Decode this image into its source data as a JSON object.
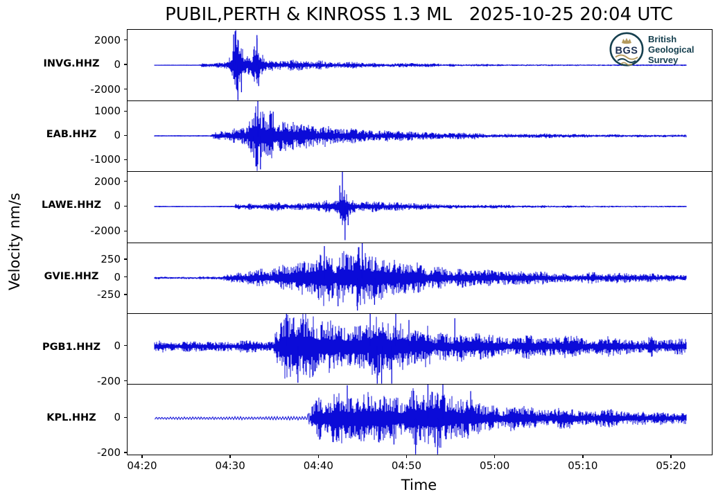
{
  "colors": {
    "trace": "#0b0bd8",
    "frame": "#000000",
    "logo_teal": "#16404f",
    "logo_navy": "#1b2f52",
    "logo_gold": "#b49а5e"
  },
  "logo": {
    "abbr": "BGS",
    "lines": [
      "British",
      "Geological",
      "Survey"
    ]
  },
  "chart_data": {
    "type": "line",
    "title": "PUBIL,PERTH & KINROSS 1.3 ML   2025-10-25 20:04 UTC",
    "event": {
      "location": "PUBIL,PERTH & KINROSS",
      "magnitude": "1.3 ML",
      "origin_time": "2025-10-25 20:04 UTC"
    },
    "x_axis": {
      "label": "Time",
      "ticks": [
        "04:20",
        "04:30",
        "04:40",
        "04:50",
        "05:00",
        "05:10",
        "05:20"
      ],
      "tick_interval_min": 10
    },
    "y_axis": {
      "label": "Velocity nm/s"
    },
    "legend": "none",
    "grid": false,
    "stations": [
      {
        "name": "INVG.HHZ",
        "yticks": [
          {
            "v": 2000,
            "label": "2000"
          },
          {
            "v": 0,
            "label": "0"
          },
          {
            "v": -2000,
            "label": "-2000"
          }
        ],
        "ylim": [
          -2880,
          2880
        ],
        "envelope": [
          [
            1.3,
            14
          ],
          [
            6.3,
            16
          ],
          [
            6.6,
            170
          ],
          [
            7.5,
            230
          ],
          [
            8.5,
            260
          ],
          [
            9.5,
            320
          ],
          [
            10.1,
            900
          ],
          [
            10.5,
            2500
          ],
          [
            11.0,
            1800
          ],
          [
            11.6,
            800
          ],
          [
            12.4,
            700
          ],
          [
            12.9,
            2200
          ],
          [
            13.3,
            900
          ],
          [
            14,
            600
          ],
          [
            15,
            520
          ],
          [
            16.5,
            440
          ],
          [
            18,
            380
          ],
          [
            20,
            320
          ],
          [
            22,
            270
          ],
          [
            24,
            230
          ],
          [
            26,
            195
          ],
          [
            28,
            165
          ],
          [
            30,
            145
          ],
          [
            33,
            120
          ],
          [
            36,
            100
          ],
          [
            40,
            82
          ],
          [
            44,
            68
          ],
          [
            48,
            58
          ],
          [
            52,
            50
          ],
          [
            56,
            44
          ],
          [
            62,
            38
          ]
        ],
        "spikes": [
          [
            10.55,
            3100
          ],
          [
            10.8,
            -3100
          ],
          [
            10.3,
            2500
          ],
          [
            11.2,
            -2200
          ],
          [
            12.95,
            2450
          ],
          [
            13.15,
            -1700
          ]
        ]
      },
      {
        "name": "EAB.HHZ",
        "yticks": [
          {
            "v": 1000,
            "label": "1000"
          },
          {
            "v": 0,
            "label": "0"
          },
          {
            "v": -1000,
            "label": "-1000"
          }
        ],
        "ylim": [
          -1460,
          1460
        ],
        "envelope": [
          [
            1.3,
            11
          ],
          [
            7.6,
            13
          ],
          [
            7.9,
            120
          ],
          [
            8.8,
            150
          ],
          [
            9.8,
            190
          ],
          [
            10.8,
            280
          ],
          [
            11.8,
            450
          ],
          [
            12.5,
            700
          ],
          [
            13.0,
            1350
          ],
          [
            13.4,
            1000
          ],
          [
            13.9,
            750
          ],
          [
            14.6,
            950
          ],
          [
            15.2,
            650
          ],
          [
            16,
            540
          ],
          [
            17.5,
            470
          ],
          [
            19,
            410
          ],
          [
            21,
            350
          ],
          [
            23,
            300
          ],
          [
            25,
            260
          ],
          [
            27,
            225
          ],
          [
            29,
            195
          ],
          [
            31,
            170
          ],
          [
            34,
            145
          ],
          [
            37,
            125
          ],
          [
            40,
            105
          ],
          [
            44,
            88
          ],
          [
            48,
            75
          ],
          [
            52,
            65
          ],
          [
            56,
            56
          ],
          [
            62,
            48
          ]
        ],
        "spikes": [
          [
            13.05,
            1480
          ],
          [
            13.35,
            -1380
          ],
          [
            14.8,
            1000
          ],
          [
            12.6,
            -900
          ]
        ]
      },
      {
        "name": "LAWE.HHZ",
        "yticks": [
          {
            "v": 2000,
            "label": "2000"
          },
          {
            "v": 0,
            "label": "0"
          },
          {
            "v": -2000,
            "label": "-2000"
          }
        ],
        "ylim": [
          -2850,
          2850
        ],
        "envelope": [
          [
            1.3,
            22
          ],
          [
            10.3,
            26
          ],
          [
            10.6,
            280
          ],
          [
            11.1,
            160
          ],
          [
            12.2,
            360
          ],
          [
            12.8,
            180
          ],
          [
            13.5,
            220
          ],
          [
            14.5,
            300
          ],
          [
            15.5,
            330
          ],
          [
            16.5,
            280
          ],
          [
            17.5,
            380
          ],
          [
            18.5,
            340
          ],
          [
            19.5,
            400
          ],
          [
            20.5,
            420
          ],
          [
            21.3,
            520
          ],
          [
            22.0,
            900
          ],
          [
            22.6,
            2600
          ],
          [
            23.1,
            1600
          ],
          [
            23.7,
            750
          ],
          [
            24.5,
            480
          ],
          [
            25.5,
            400
          ],
          [
            27,
            330
          ],
          [
            29,
            270
          ],
          [
            31,
            225
          ],
          [
            33,
            190
          ],
          [
            36,
            155
          ],
          [
            39,
            130
          ],
          [
            42,
            110
          ],
          [
            46,
            92
          ],
          [
            50,
            80
          ],
          [
            54,
            70
          ],
          [
            62,
            58
          ]
        ],
        "spikes": [
          [
            22.65,
            2950
          ],
          [
            22.95,
            -2700
          ],
          [
            22.35,
            1700
          ],
          [
            23.3,
            -1500
          ]
        ]
      },
      {
        "name": "GVIE.HHZ",
        "yticks": [
          {
            "v": 250,
            "label": "250"
          },
          {
            "v": 0,
            "label": "0"
          },
          {
            "v": -250,
            "label": "-250"
          }
        ],
        "ylim": [
          -500,
          500
        ],
        "envelope": [
          [
            1.3,
            17
          ],
          [
            8.8,
            20
          ],
          [
            9.6,
            45
          ],
          [
            11,
            70
          ],
          [
            12.5,
            95
          ],
          [
            14,
            120
          ],
          [
            15.5,
            150
          ],
          [
            17,
            195
          ],
          [
            18.5,
            240
          ],
          [
            19.5,
            280
          ],
          [
            20.4,
            330
          ],
          [
            21.2,
            290
          ],
          [
            22.2,
            330
          ],
          [
            23.2,
            360
          ],
          [
            24.2,
            430
          ],
          [
            25.0,
            370
          ],
          [
            26,
            330
          ],
          [
            27,
            290
          ],
          [
            28,
            255
          ],
          [
            29.5,
            215
          ],
          [
            31,
            185
          ],
          [
            33,
            155
          ],
          [
            35,
            130
          ],
          [
            37,
            112
          ],
          [
            39,
            100
          ],
          [
            41,
            92
          ],
          [
            43,
            85
          ],
          [
            46,
            78
          ],
          [
            49,
            72
          ],
          [
            52,
            67
          ],
          [
            56,
            62
          ],
          [
            62,
            56
          ]
        ],
        "spikes": [
          [
            20.6,
            450
          ],
          [
            24.9,
            495
          ],
          [
            24.35,
            -460
          ],
          [
            22.15,
            -400
          ],
          [
            26.3,
            -380
          ]
        ]
      },
      {
        "name": "PGB1.HHZ",
        "yticks": [
          {
            "v": 0,
            "label": "0"
          },
          {
            "v": -200,
            "label": "-200"
          }
        ],
        "ylim": [
          -212,
          188
        ],
        "envelope": [
          [
            1.3,
            30
          ],
          [
            3,
            34
          ],
          [
            5,
            30
          ],
          [
            7,
            35
          ],
          [
            9,
            31
          ],
          [
            11,
            34
          ],
          [
            13,
            30
          ],
          [
            14.8,
            31
          ],
          [
            15.1,
            120
          ],
          [
            15.8,
            160
          ],
          [
            16.6,
            145
          ],
          [
            17.4,
            160
          ],
          [
            18.2,
            145
          ],
          [
            19,
            155
          ],
          [
            20,
            135
          ],
          [
            21,
            145
          ],
          [
            22,
            125
          ],
          [
            23,
            115
          ],
          [
            23.8,
            140
          ],
          [
            24.6,
            160
          ],
          [
            25.4,
            145
          ],
          [
            26.2,
            165
          ],
          [
            27,
            155
          ],
          [
            27.8,
            175
          ],
          [
            28.6,
            160
          ],
          [
            29.4,
            135
          ],
          [
            30.5,
            115
          ],
          [
            32,
            98
          ],
          [
            34,
            85
          ],
          [
            36,
            75
          ],
          [
            38,
            68
          ],
          [
            40,
            63
          ],
          [
            43,
            59
          ],
          [
            46,
            56
          ],
          [
            49,
            53
          ],
          [
            52,
            51
          ],
          [
            56,
            48
          ],
          [
            62,
            44
          ]
        ],
        "spikes": [
          [
            27.1,
            -245
          ],
          [
            28.25,
            -255
          ],
          [
            26.6,
            -220
          ],
          [
            25.8,
            195
          ],
          [
            28.7,
            190
          ],
          [
            35.4,
            160
          ],
          [
            16.3,
            185
          ],
          [
            17.6,
            -205
          ],
          [
            30.2,
            150
          ]
        ]
      },
      {
        "name": "KPL.HHZ",
        "yticks": [
          {
            "v": 0,
            "label": "0"
          },
          {
            "v": -200,
            "label": "-200"
          }
        ],
        "ylim": [
          -208,
          196
        ],
        "sine_until": 18.9,
        "envelope": [
          [
            1.3,
            6
          ],
          [
            6,
            7
          ],
          [
            12,
            8
          ],
          [
            18.6,
            9
          ],
          [
            19.2,
            85
          ],
          [
            20,
            115
          ],
          [
            21,
            105
          ],
          [
            22,
            125
          ],
          [
            23,
            150
          ],
          [
            24,
            125
          ],
          [
            25,
            135
          ],
          [
            26,
            115
          ],
          [
            27,
            125
          ],
          [
            28,
            108
          ],
          [
            29,
            118
          ],
          [
            30,
            135
          ],
          [
            30.8,
            180
          ],
          [
            31.6,
            155
          ],
          [
            32.3,
            190
          ],
          [
            33,
            165
          ],
          [
            33.8,
            178
          ],
          [
            34.6,
            135
          ],
          [
            35.6,
            115
          ],
          [
            36.6,
            98
          ],
          [
            38,
            84
          ],
          [
            40,
            70
          ],
          [
            42,
            62
          ],
          [
            44,
            56
          ],
          [
            46,
            52
          ],
          [
            49,
            47
          ],
          [
            52,
            43
          ],
          [
            56,
            39
          ],
          [
            62,
            34
          ]
        ],
        "spikes": [
          [
            23.2,
            188
          ],
          [
            30.95,
            -235
          ],
          [
            32.35,
            212
          ],
          [
            33.45,
            -210
          ],
          [
            34.05,
            218
          ],
          [
            37.2,
            155
          ],
          [
            28.5,
            -150
          ]
        ]
      }
    ]
  }
}
